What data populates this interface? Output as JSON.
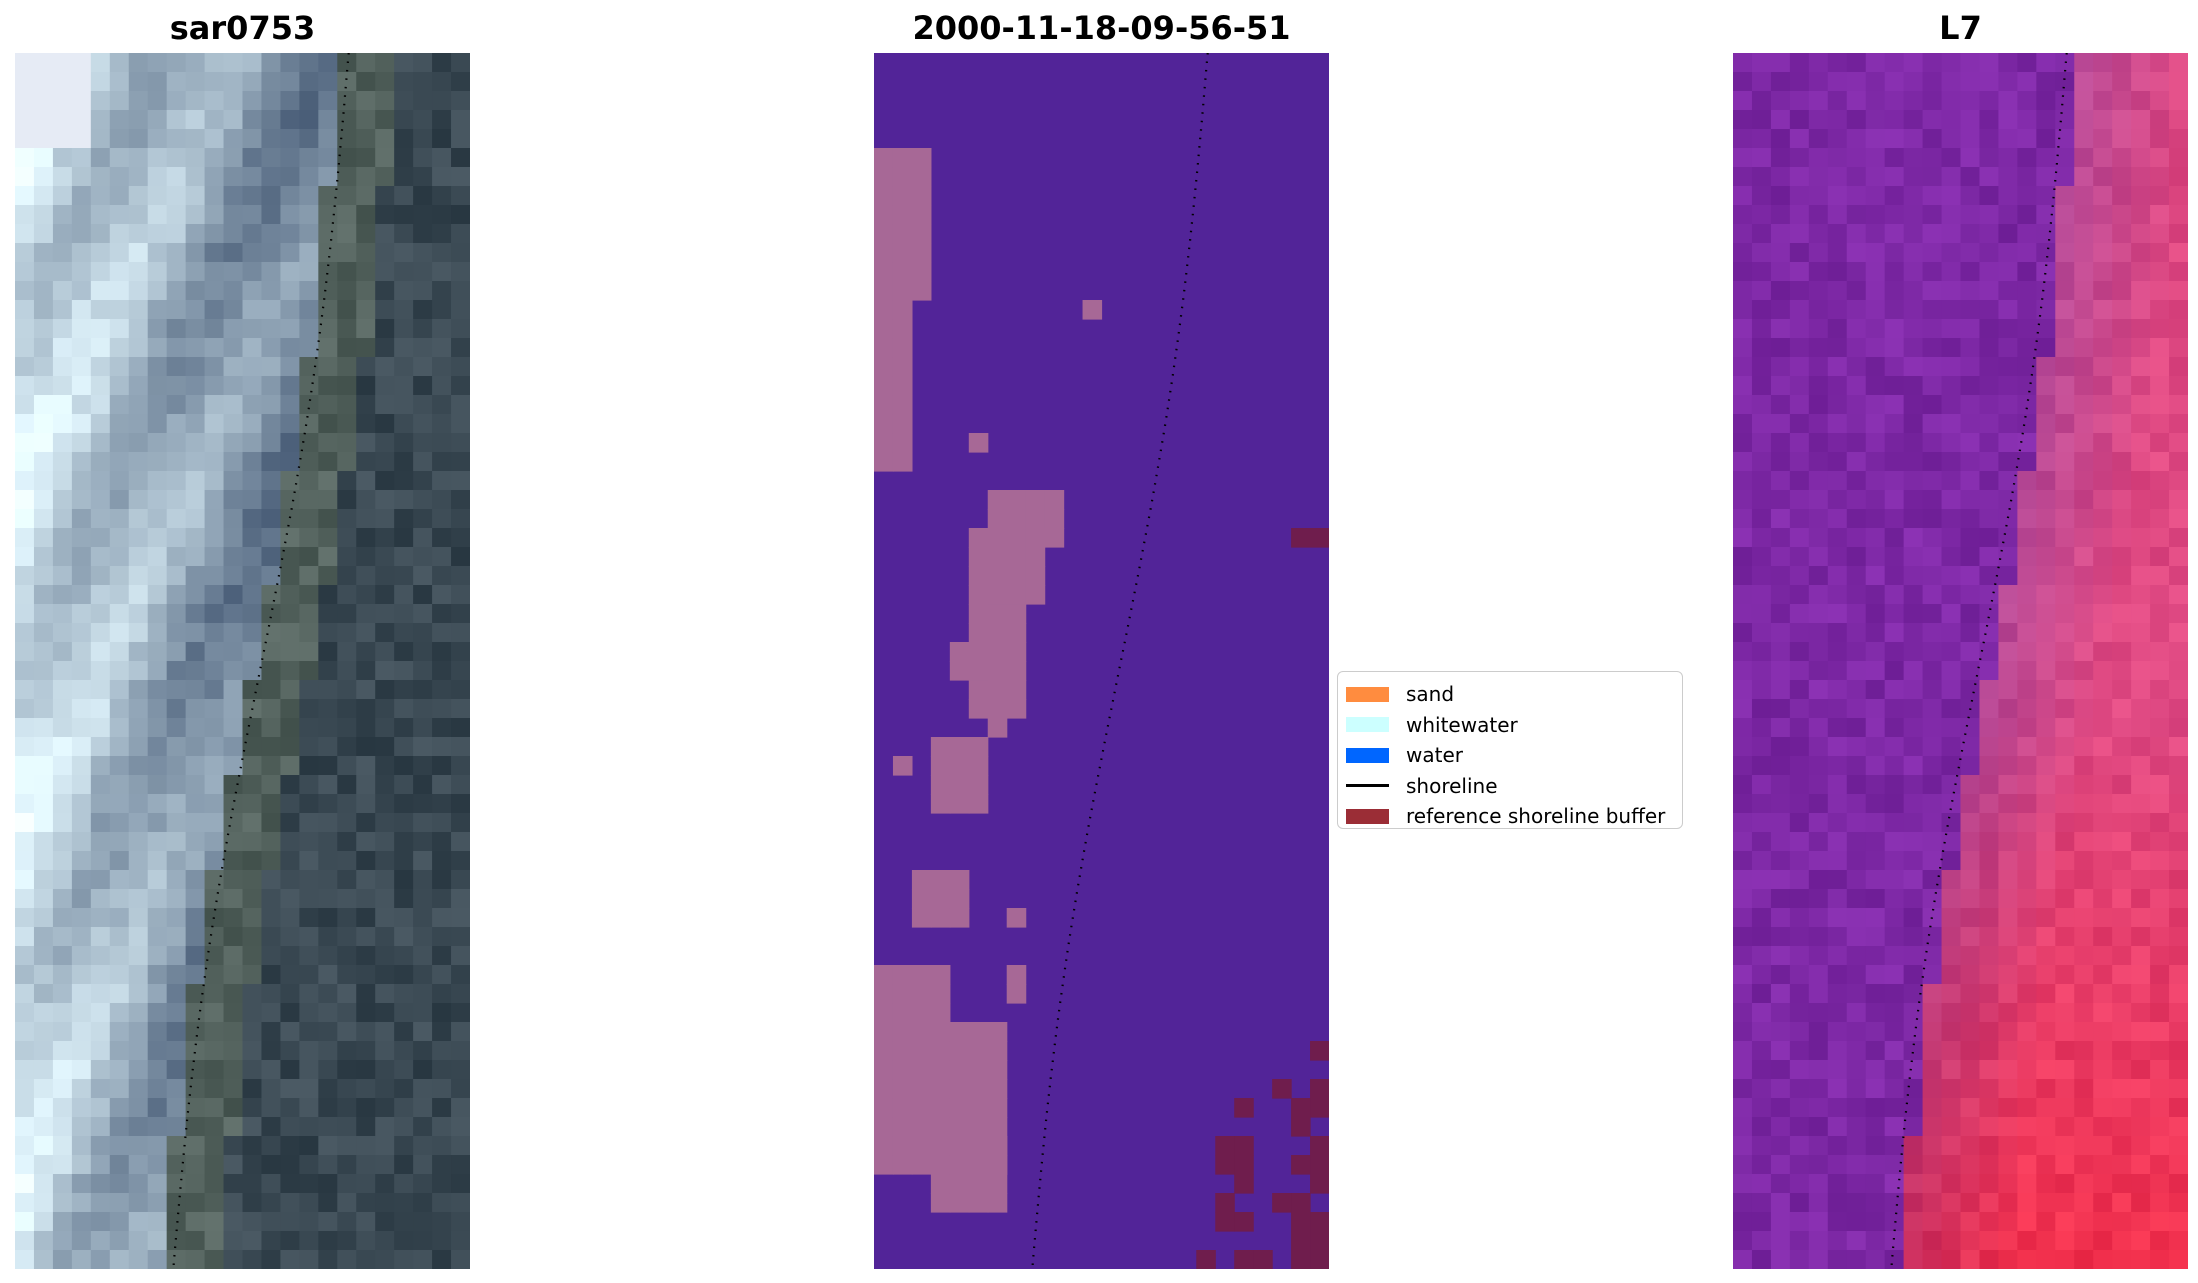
{
  "panels": [
    {
      "title": "sar0753"
    },
    {
      "title": "2000-11-18-09-56-51"
    },
    {
      "title": "L7"
    }
  ],
  "legend": {
    "items": [
      {
        "label": "sand",
        "kind": "patch",
        "color": "#ff8c3f"
      },
      {
        "label": "whitewater",
        "kind": "patch",
        "color": "#ccffff"
      },
      {
        "label": "water",
        "kind": "patch",
        "color": "#0066ff"
      },
      {
        "label": "shoreline",
        "kind": "line",
        "color": "#000000"
      },
      {
        "label": "reference shoreline buffer",
        "kind": "patch",
        "color": "#9b2d36"
      }
    ]
  },
  "colors": {
    "classification_background": "#522498",
    "classification_sand_overlay": "#a76896",
    "buffer_color": "#6f1d4d"
  }
}
